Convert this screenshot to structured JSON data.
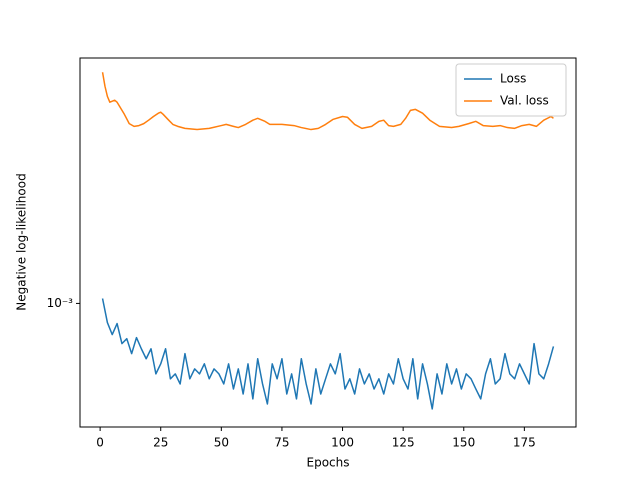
{
  "chart_data": {
    "type": "line",
    "xlabel": "Epochs",
    "ylabel": "Negative log-likelihood",
    "xlim": [
      -8.3,
      196.3
    ],
    "xticks": [
      0,
      25,
      50,
      75,
      100,
      125,
      150,
      175
    ],
    "ylim": [
      0.000413,
      0.00579
    ],
    "yscale": "log",
    "yticks": [
      {
        "value": 0.001,
        "label": "10⁻³"
      }
    ],
    "legend": "upper right",
    "series": [
      {
        "name": "Loss",
        "color": "#1f77b4",
        "x": [
          1,
          3,
          5,
          7,
          9,
          11,
          13,
          15,
          17,
          19,
          21,
          23,
          25,
          27,
          29,
          31,
          33,
          35,
          37,
          39,
          41,
          43,
          45,
          47,
          49,
          51,
          53,
          55,
          57,
          59,
          61,
          63,
          65,
          67,
          69,
          71,
          73,
          75,
          77,
          79,
          81,
          83,
          85,
          87,
          89,
          91,
          93,
          95,
          97,
          99,
          101,
          103,
          105,
          107,
          109,
          111,
          113,
          115,
          117,
          119,
          121,
          123,
          125,
          127,
          129,
          131,
          133,
          135,
          137,
          139,
          141,
          143,
          145,
          147,
          149,
          151,
          153,
          155,
          157,
          159,
          161,
          163,
          165,
          167,
          169,
          171,
          173,
          175,
          177,
          179,
          181,
          183,
          185,
          187
        ],
        "values": [
          0.001036,
          0.000872,
          0.0008,
          0.000866,
          0.00075,
          0.000777,
          0.000698,
          0.000783,
          0.000723,
          0.000673,
          0.000723,
          0.000604,
          0.000649,
          0.000723,
          0.000583,
          0.000604,
          0.000562,
          0.000698,
          0.000583,
          0.000626,
          0.000604,
          0.000649,
          0.000583,
          0.000626,
          0.000604,
          0.000562,
          0.000649,
          0.000542,
          0.000626,
          0.000523,
          0.000649,
          0.000505,
          0.000673,
          0.000562,
          0.000487,
          0.000649,
          0.000583,
          0.000673,
          0.000523,
          0.000604,
          0.000505,
          0.000673,
          0.000562,
          0.000487,
          0.000626,
          0.000523,
          0.000583,
          0.000649,
          0.000604,
          0.000698,
          0.000542,
          0.000583,
          0.000523,
          0.000626,
          0.000562,
          0.000604,
          0.000542,
          0.000583,
          0.000523,
          0.000604,
          0.000562,
          0.000673,
          0.000583,
          0.000542,
          0.000673,
          0.000505,
          0.000649,
          0.000562,
          0.00047,
          0.000604,
          0.000523,
          0.000649,
          0.000562,
          0.000626,
          0.000542,
          0.000604,
          0.000583,
          0.000542,
          0.000505,
          0.000604,
          0.000673,
          0.000562,
          0.000583,
          0.000698,
          0.000604,
          0.000583,
          0.000649,
          0.000604,
          0.000562,
          0.00075,
          0.000604,
          0.000583,
          0.000649,
          0.000735
        ]
      },
      {
        "name": "Val. loss",
        "color": "#ff7f0e",
        "x": [
          1,
          2,
          3,
          4,
          5,
          6,
          7,
          8,
          10,
          12,
          14,
          16,
          18,
          20,
          22,
          24,
          25,
          26,
          28,
          30,
          32,
          35,
          40,
          45,
          50,
          52,
          55,
          57,
          60,
          63,
          65,
          68,
          70,
          75,
          80,
          83,
          87,
          90,
          93,
          96,
          100,
          102,
          105,
          108,
          112,
          115,
          117,
          119,
          121,
          124,
          126,
          128,
          130,
          133,
          136,
          140,
          145,
          148,
          152,
          155,
          158,
          162,
          165,
          168,
          171,
          174,
          177,
          180,
          183,
          186,
          187
        ],
        "values": [
          0.00523,
          0.00473,
          0.0044,
          0.00422,
          0.00425,
          0.00428,
          0.00422,
          0.0041,
          0.00387,
          0.00362,
          0.00355,
          0.00357,
          0.00362,
          0.00371,
          0.00381,
          0.0039,
          0.00393,
          0.00387,
          0.00373,
          0.0036,
          0.00355,
          0.0035,
          0.00347,
          0.0035,
          0.00357,
          0.0036,
          0.00355,
          0.00352,
          0.0036,
          0.00371,
          0.00376,
          0.00368,
          0.0036,
          0.0036,
          0.00357,
          0.00352,
          0.00347,
          0.0035,
          0.0036,
          0.00373,
          0.00381,
          0.00379,
          0.0036,
          0.0035,
          0.00355,
          0.00368,
          0.00371,
          0.00357,
          0.00355,
          0.0036,
          0.00376,
          0.00398,
          0.00401,
          0.0039,
          0.00371,
          0.00355,
          0.00352,
          0.00355,
          0.00362,
          0.00368,
          0.00357,
          0.00355,
          0.00357,
          0.00352,
          0.0035,
          0.00357,
          0.0036,
          0.00355,
          0.00371,
          0.00381,
          0.00376
        ]
      }
    ]
  }
}
